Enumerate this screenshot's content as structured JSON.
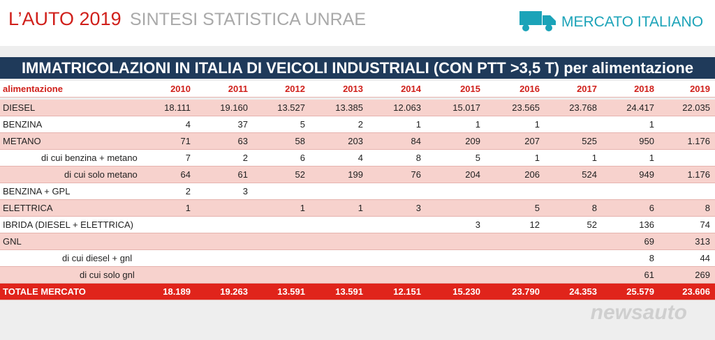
{
  "header": {
    "brand": "L’AUTO 2019",
    "subtitle": "SINTESI STATISTICA UNRAE",
    "section": "MERCATO ITALIANO"
  },
  "table": {
    "title": "IMMATRICOLAZIONI IN ITALIA DI VEICOLI INDUSTRIALI (CON PTT >3,5 T) per alimentazione",
    "columns": [
      "alimentazione",
      "2010",
      "2011",
      "2012",
      "2013",
      "2014",
      "2015",
      "2016",
      "2017",
      "2018",
      "2019"
    ],
    "rows": [
      [
        "DIESEL",
        "18.111",
        "19.160",
        "13.527",
        "13.385",
        "12.063",
        "15.017",
        "23.565",
        "23.768",
        "24.417",
        "22.035"
      ],
      [
        "BENZINA",
        "4",
        "37",
        "5",
        "2",
        "1",
        "1",
        "1",
        null,
        "1",
        null
      ],
      [
        "METANO",
        "71",
        "63",
        "58",
        "203",
        "84",
        "209",
        "207",
        "525",
        "950",
        "1.176"
      ],
      [
        "di cui benzina + metano",
        "7",
        "2",
        "6",
        "4",
        "8",
        "5",
        "1",
        "1",
        "1",
        null
      ],
      [
        "di cui solo metano",
        "64",
        "61",
        "52",
        "199",
        "76",
        "204",
        "206",
        "524",
        "949",
        "1.176"
      ],
      [
        "BENZINA + GPL",
        "2",
        "3",
        null,
        null,
        null,
        null,
        null,
        null,
        null,
        null
      ],
      [
        "ELETTRICA",
        "1",
        null,
        "1",
        "1",
        "3",
        null,
        "5",
        "8",
        "6",
        "8"
      ],
      [
        "IBRIDA (DIESEL + ELETTRICA)",
        null,
        null,
        null,
        null,
        null,
        "3",
        "12",
        "52",
        "136",
        "74"
      ],
      [
        "GNL",
        null,
        null,
        null,
        null,
        null,
        null,
        null,
        null,
        "69",
        "313"
      ],
      [
        "di cui diesel + gnl",
        null,
        null,
        null,
        null,
        null,
        null,
        null,
        null,
        "8",
        "44"
      ],
      [
        "di cui solo gnl",
        null,
        null,
        null,
        null,
        null,
        null,
        null,
        null,
        "61",
        "269"
      ]
    ],
    "total": [
      "TOTALE MERCATO",
      "18.189",
      "19.263",
      "13.591",
      "13.591",
      "12.151",
      "15.230",
      "23.790",
      "24.353",
      "25.579",
      "23.606"
    ]
  },
  "watermark": "newsauto"
}
